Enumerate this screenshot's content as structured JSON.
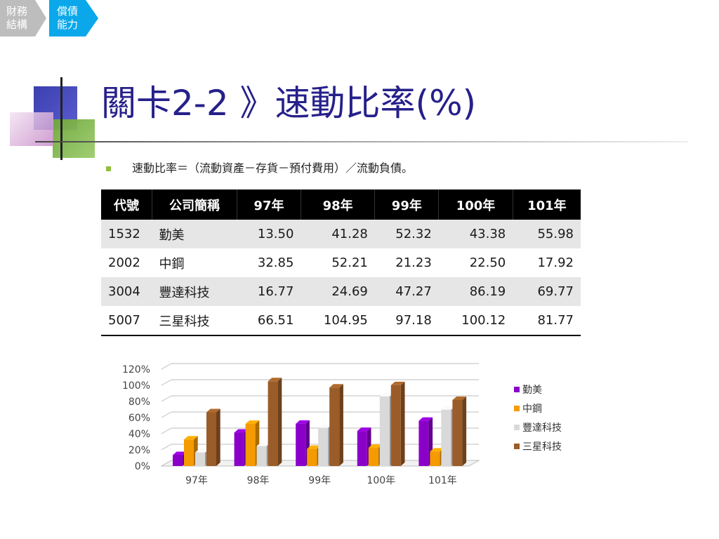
{
  "breadcrumb": {
    "items": [
      {
        "label_line1": "財務",
        "label_line2": "結構",
        "active": false
      },
      {
        "label_line1": "償債",
        "label_line2": "能力",
        "active": true
      }
    ]
  },
  "title": "關卡2-2 》速動比率(%)",
  "bullet": "速動比率＝（流動資產－存貨－預付費用）／流動負債。",
  "table": {
    "headers": [
      "代號",
      "公司簡稱",
      "97年",
      "98年",
      "99年",
      "100年",
      "101年"
    ],
    "rows": [
      {
        "code": "1532",
        "name": "勤美",
        "values": [
          "13.50",
          "41.28",
          "52.32",
          "43.38",
          "55.98"
        ]
      },
      {
        "code": "2002",
        "name": "中鋼",
        "values": [
          "32.85",
          "52.21",
          "21.23",
          "22.50",
          "17.92"
        ]
      },
      {
        "code": "3004",
        "name": "豐達科技",
        "values": [
          "16.77",
          "24.69",
          "47.27",
          "86.19",
          "69.77"
        ]
      },
      {
        "code": "5007",
        "name": "三星科技",
        "values": [
          "66.51",
          "104.95",
          "97.18",
          "100.12",
          "81.77"
        ]
      }
    ]
  },
  "chart_data": {
    "type": "bar",
    "categories": [
      "97年",
      "98年",
      "99年",
      "100年",
      "101年"
    ],
    "series": [
      {
        "name": "勤美",
        "color": "#8b00c9",
        "values": [
          13.5,
          41.28,
          52.32,
          43.38,
          55.98
        ]
      },
      {
        "name": "中鋼",
        "color": "#f59a00",
        "values": [
          32.85,
          52.21,
          21.23,
          22.5,
          17.92
        ]
      },
      {
        "name": "豐達科技",
        "color": "#d9d9d9",
        "values": [
          16.77,
          24.69,
          47.27,
          86.19,
          69.77
        ]
      },
      {
        "name": "三星科技",
        "color": "#9a5c28",
        "values": [
          66.51,
          104.95,
          97.18,
          100.12,
          81.77
        ]
      }
    ],
    "yticks": [
      "0%",
      "20%",
      "40%",
      "60%",
      "80%",
      "100%",
      "120%"
    ],
    "ylim": [
      0,
      120
    ],
    "grid": true,
    "legend": "right",
    "style": "3d-column"
  }
}
